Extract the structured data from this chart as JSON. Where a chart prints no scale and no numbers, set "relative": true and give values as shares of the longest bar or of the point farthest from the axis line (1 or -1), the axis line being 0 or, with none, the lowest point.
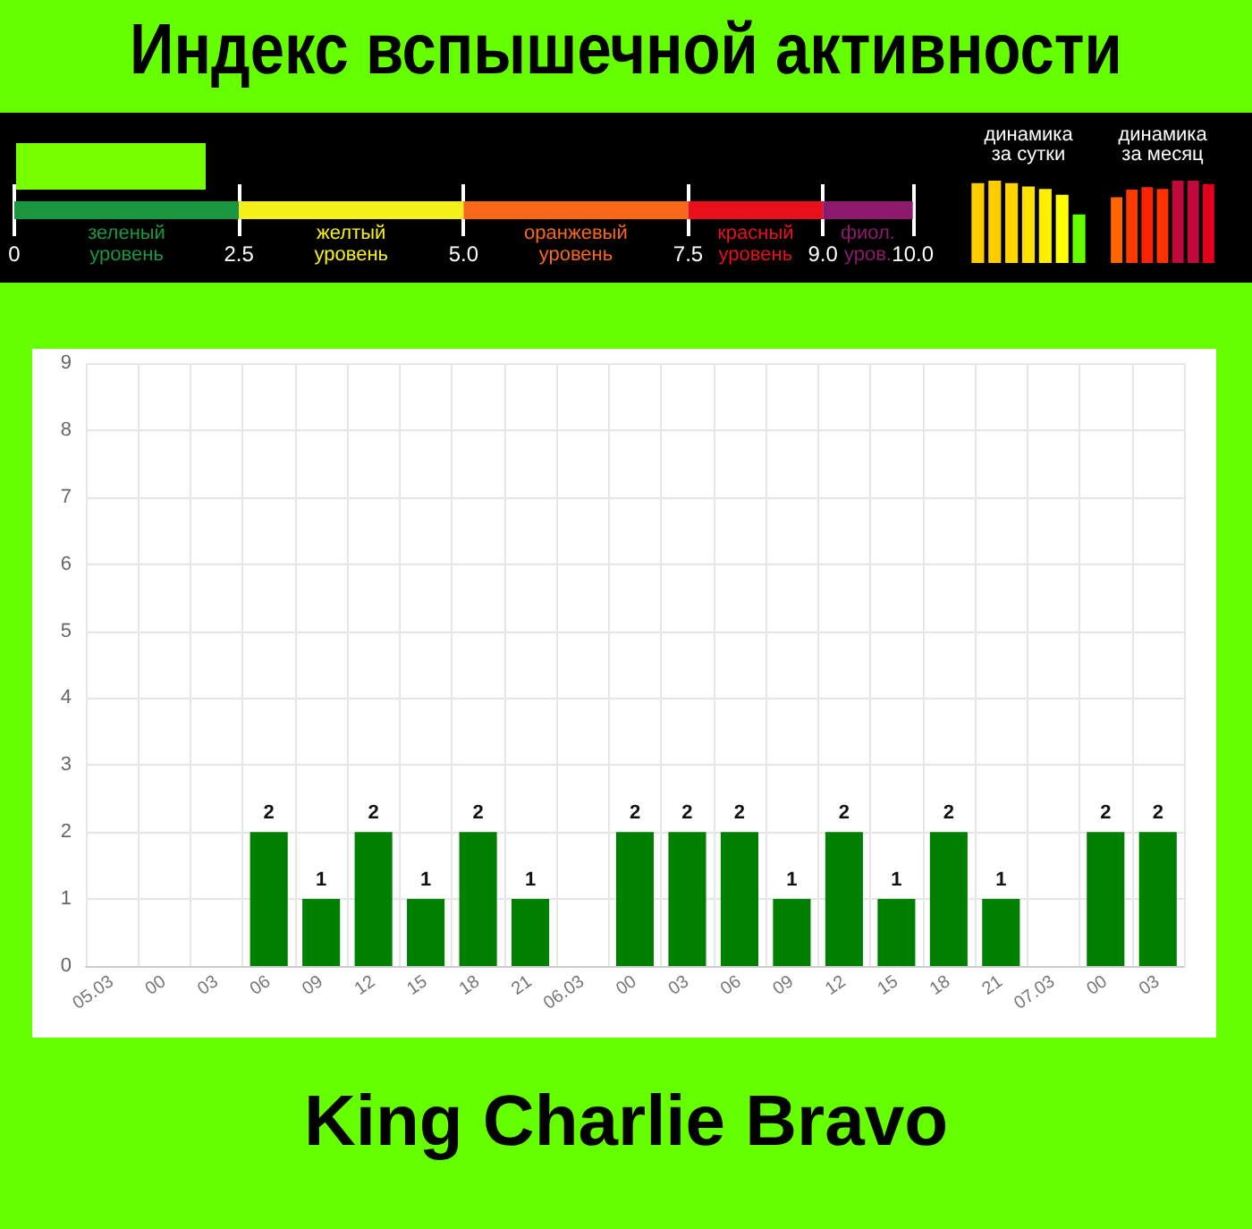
{
  "chart_data": [
    {
      "type": "bar",
      "title": "Индекс вспышечной активности",
      "orientation": "horizontal",
      "stacked": true,
      "grid": "x",
      "categories": [
        null
      ],
      "xlim": [
        0,
        10
      ],
      "xticks": [
        0,
        {
          "value": 2.5,
          "label": "2.5"
        },
        {
          "value": 5,
          "label": "5.0"
        },
        {
          "value": 7.5,
          "label": "7.5"
        },
        {
          "value": 9,
          "label": "9.0"
        },
        {
          "value": 10,
          "label": "10.0"
        }
      ],
      "series": [
        {
          "name": "зеленый\nуровень",
          "color": "#1a9641",
          "values": [
            2.5
          ]
        },
        {
          "name": "желтый\nуровень",
          "color": "#f5f01a",
          "values": [
            2.5
          ]
        },
        {
          "name": "оранжевый\nуровень",
          "color": "#f7681a",
          "values": [
            2.5
          ]
        },
        {
          "name": "красный\nуровень",
          "color": "#e8101a",
          "values": [
            1.5
          ]
        },
        {
          "name": "фиол.\nуров.",
          "color": "#8e1a6e",
          "values": [
            1
          ]
        }
      ]
    },
    {
      "type": "bar",
      "title": "динамика\nза сутки",
      "relative": true,
      "categories": [
        null,
        null,
        null,
        null,
        null,
        null,
        null
      ],
      "values": [
        0.97,
        1,
        0.97,
        0.93,
        0.9,
        0.83,
        0.59
      ],
      "colors": [
        "#ffcc00",
        "#ffcc00",
        "#ffd400",
        "#ffe000",
        "#ffee00",
        "#ffff00",
        "#66ff00"
      ]
    },
    {
      "type": "bar",
      "title": "динамика\nза месяц",
      "relative": true,
      "categories": [
        null,
        null,
        null,
        null,
        null,
        null,
        null
      ],
      "values": [
        0.8,
        0.89,
        0.92,
        0.9,
        1,
        1,
        0.96
      ],
      "colors": [
        "#ff6600",
        "#ff3a00",
        "#ff2200",
        "#ff3300",
        "#c0083c",
        "#c0083c",
        "#e0001e"
      ]
    },
    {
      "type": "bar",
      "subtitle": "King Charlie Bravo",
      "categories": [
        "05.03",
        "00",
        "03",
        "06",
        "09",
        "12",
        "15",
        "18",
        "21",
        "06.03",
        "00",
        "03",
        "06",
        "09",
        "12",
        "15",
        "18",
        "21",
        "07.03",
        "00",
        "03"
      ],
      "values": [
        0,
        0,
        0,
        2,
        1,
        2,
        1,
        2,
        1,
        0,
        2,
        2,
        2,
        1,
        2,
        1,
        2,
        1,
        0,
        2,
        2
      ],
      "value_labels": [
        null,
        null,
        null,
        "2",
        "1",
        "2",
        "1",
        "2",
        "1",
        null,
        "2",
        "2",
        "2",
        "1",
        "2",
        "1",
        "2",
        "1",
        null,
        "2",
        "2"
      ],
      "color": "#008000",
      "ylim": [
        0,
        9
      ],
      "yticks": [
        0,
        1,
        2,
        3,
        4,
        5,
        6,
        7,
        8,
        9
      ],
      "grid": true
    }
  ]
}
